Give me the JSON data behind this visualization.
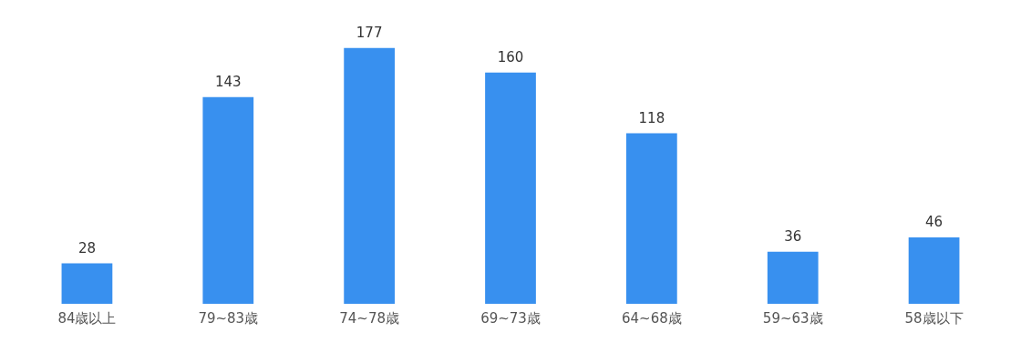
{
  "chart_data": {
    "type": "bar",
    "categories": [
      "84歳以上",
      "79~83歳",
      "74~78歳",
      "69~73歳",
      "64~68歳",
      "59~63歳",
      "58歳以下"
    ],
    "values": [
      28,
      143,
      177,
      160,
      118,
      36,
      46
    ],
    "color": "#3890ef",
    "data_labels": true,
    "grid": false,
    "legend": false,
    "tick_labels": "x"
  }
}
